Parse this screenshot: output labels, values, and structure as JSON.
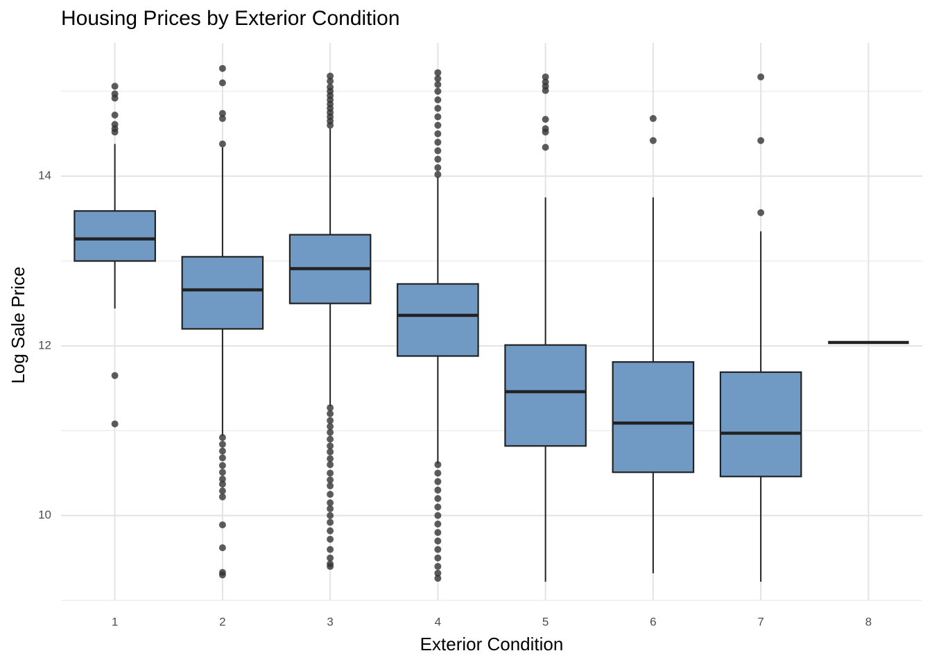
{
  "chart_data": {
    "type": "box",
    "title": "Housing Prices by Exterior Condition",
    "x_label": "Exterior Condition",
    "y_label": "Log Sale Price",
    "categories": [
      "1",
      "2",
      "3",
      "4",
      "5",
      "6",
      "7",
      "8"
    ],
    "min": [
      12.44,
      10.94,
      11.29,
      10.61,
      9.22,
      9.32,
      9.22,
      12.04
    ],
    "q1": [
      13.0,
      12.2,
      12.5,
      11.88,
      10.82,
      10.51,
      10.46,
      12.04
    ],
    "median": [
      13.26,
      12.66,
      12.91,
      12.36,
      11.46,
      11.09,
      10.97,
      12.04
    ],
    "q3": [
      13.59,
      13.05,
      13.31,
      12.73,
      12.01,
      11.81,
      11.69,
      12.04
    ],
    "max": [
      14.38,
      14.34,
      14.56,
      13.99,
      13.75,
      13.75,
      13.35,
      12.04
    ],
    "outliers": [
      [
        15.06,
        14.97,
        14.92,
        14.72,
        14.61,
        14.56,
        14.52,
        11.65,
        11.08
      ],
      [
        15.27,
        15.1,
        14.74,
        14.68,
        14.38,
        10.92,
        10.84,
        10.76,
        10.68,
        10.59,
        10.51,
        10.43,
        10.37,
        10.29,
        10.22,
        9.89,
        9.62,
        9.33,
        9.3
      ],
      [
        15.18,
        15.12,
        15.05,
        15.0,
        14.95,
        14.9,
        14.85,
        14.8,
        14.75,
        14.7,
        14.65,
        14.6,
        11.27,
        11.2,
        11.12,
        11.05,
        10.98,
        10.9,
        10.82,
        10.75,
        10.67,
        10.6,
        10.5,
        10.42,
        10.35,
        10.25,
        10.15,
        10.08,
        10.0,
        9.92,
        9.82,
        9.72,
        9.6,
        9.5,
        9.43,
        9.4
      ],
      [
        15.22,
        15.15,
        15.08,
        15.0,
        14.9,
        14.8,
        14.7,
        14.6,
        14.5,
        14.4,
        14.3,
        14.2,
        14.1,
        14.02,
        10.6,
        10.5,
        10.4,
        10.3,
        10.2,
        10.1,
        10.0,
        9.9,
        9.8,
        9.7,
        9.6,
        9.5,
        9.4,
        9.32,
        9.26
      ],
      [
        15.17,
        15.11,
        15.06,
        15.01,
        14.67,
        14.56,
        14.52,
        14.34
      ],
      [
        14.68,
        14.42
      ],
      [
        15.17,
        14.42,
        13.57
      ],
      []
    ],
    "color": "#7099c4",
    "ylim": [
      9,
      15.57
    ],
    "yticks": [
      10,
      12,
      14
    ],
    "minor_yticks": [
      9,
      11,
      13,
      15
    ],
    "grid": true
  }
}
